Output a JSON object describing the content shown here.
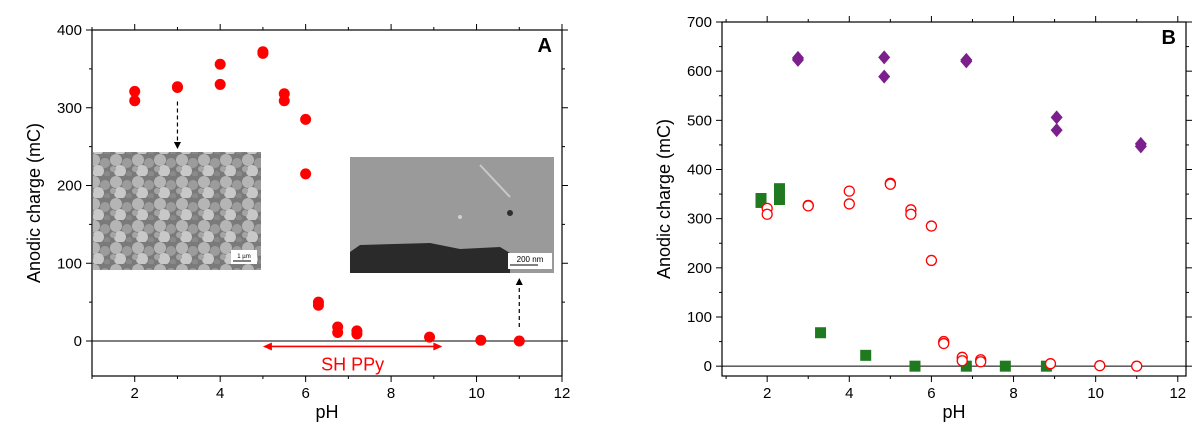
{
  "colors": {
    "red": "#ff0000",
    "green": "#1f7a1f",
    "purple": "#7b1f8c",
    "axis": "#000000"
  },
  "chart_data": [
    {
      "type": "scatter",
      "panel_label": "A",
      "xlabel": "pH",
      "ylabel": "Anodic charge (mC)",
      "xlim": [
        1,
        12
      ],
      "ylim": [
        -45,
        400
      ],
      "x_ticks": [
        "2",
        "4",
        "6",
        "8",
        "10",
        "12"
      ],
      "y_ticks": [
        "0",
        "100",
        "200",
        "300",
        "400"
      ],
      "reference_line_y": 0,
      "series": [
        {
          "marker": "filled-circle",
          "color": "#ff0000",
          "points": [
            [
              2.0,
              321
            ],
            [
              2.0,
              309
            ],
            [
              3.0,
              327
            ],
            [
              3.0,
              326
            ],
            [
              4.0,
              356
            ],
            [
              4.0,
              330
            ],
            [
              5.0,
              372
            ],
            [
              5.0,
              370
            ],
            [
              5.5,
              318
            ],
            [
              5.5,
              309
            ],
            [
              6.0,
              285
            ],
            [
              6.0,
              215
            ],
            [
              6.3,
              50
            ],
            [
              6.3,
              46
            ],
            [
              6.75,
              18
            ],
            [
              6.75,
              11
            ],
            [
              7.2,
              13
            ],
            [
              7.2,
              9
            ],
            [
              8.9,
              5
            ],
            [
              10.1,
              1
            ],
            [
              11.0,
              0
            ]
          ]
        }
      ],
      "annotation": {
        "text": "SH PPy",
        "from_x": 5.0,
        "to_x": 9.2,
        "y": -7
      },
      "insets": [
        {
          "scale_text": "1 µm",
          "points_to": [
            3.0,
            326
          ]
        },
        {
          "scale_text": "200 nm",
          "points_to": [
            11.0,
            0
          ]
        }
      ]
    },
    {
      "type": "scatter",
      "panel_label": "B",
      "xlabel": "pH",
      "ylabel": "Anodic charge (mC)",
      "xlim": [
        0.9,
        12.2
      ],
      "ylim": [
        -20,
        700
      ],
      "x_ticks": [
        "2",
        "4",
        "6",
        "8",
        "10",
        "12"
      ],
      "y_ticks": [
        "0",
        "100",
        "200",
        "300",
        "400",
        "500",
        "600",
        "700"
      ],
      "reference_line_y": 0,
      "series": [
        {
          "marker": "filled-diamond",
          "color": "#7b1f8c",
          "points": [
            [
              2.75,
              627
            ],
            [
              2.75,
              623
            ],
            [
              4.85,
              628
            ],
            [
              4.85,
              589
            ],
            [
              6.85,
              623
            ],
            [
              6.85,
              620
            ],
            [
              9.05,
              506
            ],
            [
              9.05,
              480
            ],
            [
              11.1,
              452
            ],
            [
              11.1,
              447
            ]
          ]
        },
        {
          "marker": "filled-square",
          "color": "#1f7a1f",
          "points": [
            [
              1.85,
              341
            ],
            [
              1.85,
              333
            ],
            [
              2.3,
              361
            ],
            [
              2.3,
              339
            ],
            [
              3.3,
              68
            ],
            [
              4.4,
              22
            ],
            [
              5.6,
              0
            ],
            [
              6.85,
              0
            ],
            [
              7.8,
              0
            ],
            [
              8.8,
              0
            ]
          ]
        },
        {
          "marker": "open-circle",
          "color": "#ff0000",
          "points": [
            [
              2.0,
              321
            ],
            [
              2.0,
              309
            ],
            [
              3.0,
              327
            ],
            [
              3.0,
              326
            ],
            [
              4.0,
              356
            ],
            [
              4.0,
              330
            ],
            [
              5.0,
              372
            ],
            [
              5.0,
              370
            ],
            [
              5.5,
              318
            ],
            [
              5.5,
              309
            ],
            [
              6.0,
              285
            ],
            [
              6.0,
              215
            ],
            [
              6.3,
              50
            ],
            [
              6.3,
              46
            ],
            [
              6.75,
              18
            ],
            [
              6.75,
              11
            ],
            [
              7.2,
              13
            ],
            [
              7.2,
              9
            ],
            [
              8.9,
              5
            ],
            [
              10.1,
              1
            ],
            [
              11.0,
              0
            ]
          ]
        }
      ]
    }
  ]
}
